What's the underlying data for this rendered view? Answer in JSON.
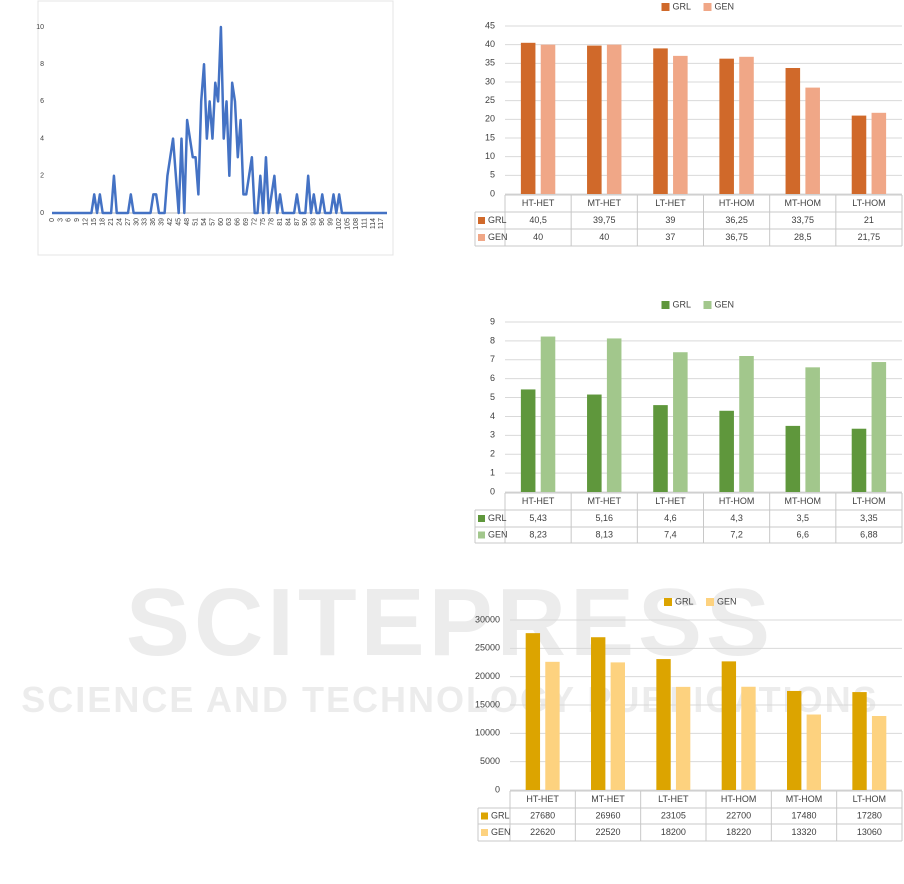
{
  "watermark": {
    "title": "SCITEPRESS",
    "subtitle": "SCIENCE AND TECHNOLOGY PUBLICATIONS"
  },
  "chart_data": [
    {
      "type": "line",
      "color": "#4472c4",
      "grid": false,
      "x": [
        0,
        1,
        2,
        3,
        4,
        5,
        6,
        7,
        8,
        9,
        10,
        11,
        12,
        13,
        14,
        15,
        16,
        17,
        18,
        19,
        20,
        21,
        22,
        23,
        24,
        25,
        26,
        27,
        28,
        29,
        30,
        31,
        32,
        33,
        34,
        35,
        36,
        37,
        38,
        39,
        40,
        41,
        42,
        43,
        44,
        45,
        46,
        47,
        48,
        49,
        50,
        51,
        52,
        53,
        54,
        55,
        56,
        57,
        58,
        59,
        60,
        61,
        62,
        63,
        64,
        65,
        66,
        67,
        68,
        69,
        70,
        71,
        72,
        73,
        74,
        75,
        76,
        77,
        78,
        79,
        80,
        81,
        82,
        83,
        84,
        85,
        86,
        87,
        88,
        89,
        90,
        91,
        92,
        93,
        94,
        95,
        96,
        97,
        98,
        99,
        100,
        101,
        102,
        103,
        104,
        105,
        106,
        107,
        108,
        109,
        110,
        111,
        112,
        113,
        114,
        115,
        116,
        117,
        118,
        119
      ],
      "values": [
        0,
        0,
        0,
        0,
        0,
        0,
        0,
        0,
        0,
        0,
        0,
        0,
        0,
        0,
        0,
        1,
        0,
        1,
        0,
        0,
        0,
        0,
        2,
        0,
        0,
        0,
        0,
        0,
        1,
        0,
        0,
        0,
        0,
        0,
        0,
        0,
        1,
        1,
        0,
        0,
        0,
        2,
        3,
        4,
        2,
        0,
        4,
        0,
        5,
        4,
        3,
        3,
        1,
        6,
        8,
        4,
        6,
        4,
        7,
        6,
        10,
        4,
        6,
        2,
        7,
        6,
        3,
        5,
        1,
        1,
        2,
        3,
        0,
        0,
        2,
        0,
        3,
        0,
        1,
        2,
        0,
        1,
        0,
        0,
        0,
        0,
        0,
        1,
        0,
        0,
        0,
        2,
        0,
        1,
        0,
        0,
        1,
        0,
        0,
        0,
        1,
        0,
        1,
        0,
        0,
        0,
        0,
        0,
        0,
        0,
        0,
        0,
        0,
        0,
        0,
        0,
        0,
        0,
        0,
        0
      ],
      "xlim": [
        0,
        119
      ],
      "xticks": [
        0,
        3,
        6,
        9,
        12,
        15,
        18,
        21,
        24,
        27,
        30,
        33,
        36,
        39,
        42,
        45,
        48,
        51,
        54,
        57,
        60,
        63,
        66,
        69,
        72,
        75,
        78,
        81,
        84,
        87,
        90,
        93,
        96,
        99,
        102,
        105,
        108,
        111,
        114,
        117
      ],
      "ylim": [
        0,
        10
      ],
      "yticks": [
        0,
        2,
        4,
        6,
        8,
        10
      ]
    },
    {
      "type": "bar",
      "grid": true,
      "legend": "top",
      "categories": [
        "HT-HET",
        "MT-HET",
        "LT-HET",
        "HT-HOM",
        "MT-HOM",
        "LT-HOM"
      ],
      "series": [
        {
          "name": "GRL",
          "color": "#d0692a",
          "values": [
            40.5,
            39.75,
            39,
            36.25,
            33.75,
            21
          ],
          "value_labels": [
            "40,5",
            "39,75",
            "39",
            "36,25",
            "33,75",
            "21"
          ]
        },
        {
          "name": "GEN",
          "color": "#f0a787",
          "values": [
            40,
            40,
            37,
            36.75,
            28.5,
            21.75
          ],
          "value_labels": [
            "40",
            "40",
            "37",
            "36,75",
            "28,5",
            "21,75"
          ]
        }
      ],
      "ylim": [
        0,
        45
      ],
      "yticks": [
        0,
        5,
        10,
        15,
        20,
        25,
        30,
        35,
        40,
        45
      ]
    },
    {
      "type": "bar",
      "grid": true,
      "legend": "top",
      "categories": [
        "HT-HET",
        "MT-HET",
        "LT-HET",
        "HT-HOM",
        "MT-HOM",
        "LT-HOM"
      ],
      "series": [
        {
          "name": "GRL",
          "color": "#5f973c",
          "values": [
            5.43,
            5.16,
            4.6,
            4.3,
            3.5,
            3.35
          ],
          "value_labels": [
            "5,43",
            "5,16",
            "4,6",
            "4,3",
            "3,5",
            "3,35"
          ]
        },
        {
          "name": "GEN",
          "color": "#a2c78c",
          "values": [
            8.23,
            8.13,
            7.4,
            7.2,
            6.6,
            6.88
          ],
          "value_labels": [
            "8,23",
            "8,13",
            "7,4",
            "7,2",
            "6,6",
            "6,88"
          ]
        }
      ],
      "ylim": [
        0,
        9
      ],
      "yticks": [
        0,
        1,
        2,
        3,
        4,
        5,
        6,
        7,
        8,
        9
      ]
    },
    {
      "type": "bar",
      "grid": true,
      "legend": "top",
      "categories": [
        "HT-HET",
        "MT-HET",
        "LT-HET",
        "HT-HOM",
        "MT-HOM",
        "LT-HOM"
      ],
      "series": [
        {
          "name": "GRL",
          "color": "#dca400",
          "values": [
            27680,
            26960,
            23105,
            22700,
            17480,
            17280
          ]
        },
        {
          "name": "GEN",
          "color": "#fdd27f",
          "values": [
            22620,
            22520,
            18200,
            18220,
            13320,
            13060
          ]
        }
      ],
      "ylim": [
        0,
        30000
      ],
      "yticks": [
        0,
        5000,
        10000,
        15000,
        20000,
        25000,
        30000
      ]
    }
  ]
}
